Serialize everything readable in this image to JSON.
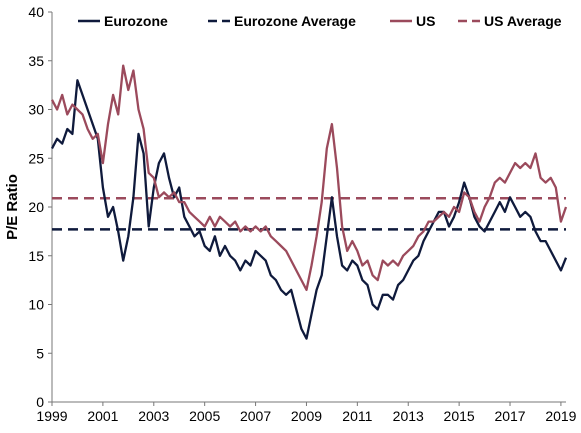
{
  "chart_data": {
    "type": "line",
    "title": "",
    "xlabel": "",
    "ylabel": "P/E Ratio",
    "xlim": [
      1999,
      2019.2
    ],
    "ylim": [
      0,
      40
    ],
    "x_ticks": [
      "1999",
      "2001",
      "2003",
      "2005",
      "2007",
      "2009",
      "2011",
      "2013",
      "2015",
      "2017",
      "2019"
    ],
    "y_ticks": [
      "0",
      "5",
      "10",
      "15",
      "20",
      "25",
      "30",
      "35",
      "40"
    ],
    "grid": false,
    "legend": "top",
    "series": [
      {
        "name": "Eurozone",
        "color": "#0f1a3c",
        "style": "solid",
        "points": [
          [
            1999.0,
            26.0
          ],
          [
            1999.2,
            27.0
          ],
          [
            1999.4,
            26.5
          ],
          [
            1999.6,
            28.0
          ],
          [
            1999.8,
            27.5
          ],
          [
            2000.0,
            33.0
          ],
          [
            2000.2,
            31.5
          ],
          [
            2000.4,
            30.0
          ],
          [
            2000.6,
            28.5
          ],
          [
            2000.8,
            27.0
          ],
          [
            2001.0,
            22.0
          ],
          [
            2001.2,
            19.0
          ],
          [
            2001.4,
            20.0
          ],
          [
            2001.6,
            17.5
          ],
          [
            2001.8,
            14.5
          ],
          [
            2002.0,
            17.0
          ],
          [
            2002.2,
            21.0
          ],
          [
            2002.4,
            27.5
          ],
          [
            2002.6,
            25.5
          ],
          [
            2002.8,
            18.0
          ],
          [
            2003.0,
            22.0
          ],
          [
            2003.2,
            24.5
          ],
          [
            2003.4,
            25.5
          ],
          [
            2003.6,
            23.0
          ],
          [
            2003.8,
            21.0
          ],
          [
            2004.0,
            22.0
          ],
          [
            2004.2,
            19.0
          ],
          [
            2004.4,
            18.0
          ],
          [
            2004.6,
            17.0
          ],
          [
            2004.8,
            17.5
          ],
          [
            2005.0,
            16.0
          ],
          [
            2005.2,
            15.5
          ],
          [
            2005.4,
            17.0
          ],
          [
            2005.6,
            15.0
          ],
          [
            2005.8,
            16.0
          ],
          [
            2006.0,
            15.0
          ],
          [
            2006.2,
            14.5
          ],
          [
            2006.4,
            13.5
          ],
          [
            2006.6,
            14.5
          ],
          [
            2006.8,
            14.0
          ],
          [
            2007.0,
            15.5
          ],
          [
            2007.2,
            15.0
          ],
          [
            2007.4,
            14.5
          ],
          [
            2007.6,
            13.0
          ],
          [
            2007.8,
            12.5
          ],
          [
            2008.0,
            11.5
          ],
          [
            2008.2,
            11.0
          ],
          [
            2008.4,
            11.5
          ],
          [
            2008.6,
            9.5
          ],
          [
            2008.8,
            7.5
          ],
          [
            2009.0,
            6.5
          ],
          [
            2009.2,
            9.0
          ],
          [
            2009.4,
            11.5
          ],
          [
            2009.6,
            13.0
          ],
          [
            2009.8,
            17.0
          ],
          [
            2010.0,
            21.0
          ],
          [
            2010.2,
            17.0
          ],
          [
            2010.4,
            14.0
          ],
          [
            2010.6,
            13.5
          ],
          [
            2010.8,
            14.5
          ],
          [
            2011.0,
            14.0
          ],
          [
            2011.2,
            12.5
          ],
          [
            2011.4,
            12.0
          ],
          [
            2011.6,
            10.0
          ],
          [
            2011.8,
            9.5
          ],
          [
            2012.0,
            11.0
          ],
          [
            2012.2,
            11.0
          ],
          [
            2012.4,
            10.5
          ],
          [
            2012.6,
            12.0
          ],
          [
            2012.8,
            12.5
          ],
          [
            2013.0,
            13.5
          ],
          [
            2013.2,
            14.5
          ],
          [
            2013.4,
            15.0
          ],
          [
            2013.6,
            16.5
          ],
          [
            2013.8,
            17.5
          ],
          [
            2014.0,
            18.5
          ],
          [
            2014.2,
            19.5
          ],
          [
            2014.4,
            19.5
          ],
          [
            2014.6,
            18.0
          ],
          [
            2014.8,
            19.0
          ],
          [
            2015.0,
            20.5
          ],
          [
            2015.2,
            22.5
          ],
          [
            2015.4,
            21.0
          ],
          [
            2015.6,
            19.0
          ],
          [
            2015.8,
            18.0
          ],
          [
            2016.0,
            17.5
          ],
          [
            2016.2,
            18.5
          ],
          [
            2016.4,
            19.5
          ],
          [
            2016.6,
            20.5
          ],
          [
            2016.8,
            19.5
          ],
          [
            2017.0,
            21.0
          ],
          [
            2017.2,
            20.0
          ],
          [
            2017.4,
            19.0
          ],
          [
            2017.6,
            19.5
          ],
          [
            2017.8,
            19.0
          ],
          [
            2018.0,
            17.5
          ],
          [
            2018.2,
            16.5
          ],
          [
            2018.4,
            16.5
          ],
          [
            2018.6,
            15.5
          ],
          [
            2018.8,
            14.5
          ],
          [
            2019.0,
            13.5
          ],
          [
            2019.2,
            14.8
          ]
        ]
      },
      {
        "name": "Eurozone Average",
        "color": "#0f1a3c",
        "style": "dashed",
        "value": 17.7
      },
      {
        "name": "US",
        "color": "#9b4a5c",
        "style": "solid",
        "points": [
          [
            1999.0,
            31.0
          ],
          [
            1999.2,
            30.0
          ],
          [
            1999.4,
            31.5
          ],
          [
            1999.6,
            29.5
          ],
          [
            1999.8,
            30.5
          ],
          [
            2000.0,
            30.0
          ],
          [
            2000.2,
            29.5
          ],
          [
            2000.4,
            28.0
          ],
          [
            2000.6,
            27.0
          ],
          [
            2000.8,
            27.5
          ],
          [
            2001.0,
            24.5
          ],
          [
            2001.2,
            28.5
          ],
          [
            2001.4,
            31.5
          ],
          [
            2001.6,
            29.5
          ],
          [
            2001.8,
            34.5
          ],
          [
            2002.0,
            32.0
          ],
          [
            2002.2,
            34.0
          ],
          [
            2002.4,
            30.0
          ],
          [
            2002.6,
            28.0
          ],
          [
            2002.8,
            23.5
          ],
          [
            2003.0,
            23.0
          ],
          [
            2003.2,
            21.0
          ],
          [
            2003.4,
            21.5
          ],
          [
            2003.6,
            21.0
          ],
          [
            2003.8,
            21.5
          ],
          [
            2004.0,
            20.5
          ],
          [
            2004.2,
            20.5
          ],
          [
            2004.4,
            19.5
          ],
          [
            2004.6,
            19.0
          ],
          [
            2004.8,
            18.5
          ],
          [
            2005.0,
            18.0
          ],
          [
            2005.2,
            19.0
          ],
          [
            2005.4,
            18.0
          ],
          [
            2005.6,
            19.0
          ],
          [
            2005.8,
            18.5
          ],
          [
            2006.0,
            18.0
          ],
          [
            2006.2,
            18.5
          ],
          [
            2006.4,
            17.5
          ],
          [
            2006.6,
            18.0
          ],
          [
            2006.8,
            17.5
          ],
          [
            2007.0,
            18.0
          ],
          [
            2007.2,
            17.5
          ],
          [
            2007.4,
            18.0
          ],
          [
            2007.6,
            17.0
          ],
          [
            2007.8,
            16.5
          ],
          [
            2008.0,
            16.0
          ],
          [
            2008.2,
            15.5
          ],
          [
            2008.4,
            14.5
          ],
          [
            2008.6,
            13.5
          ],
          [
            2008.8,
            12.5
          ],
          [
            2009.0,
            11.5
          ],
          [
            2009.2,
            14.0
          ],
          [
            2009.4,
            17.0
          ],
          [
            2009.6,
            20.5
          ],
          [
            2009.8,
            26.0
          ],
          [
            2010.0,
            28.5
          ],
          [
            2010.2,
            24.0
          ],
          [
            2010.4,
            18.0
          ],
          [
            2010.6,
            15.5
          ],
          [
            2010.8,
            16.5
          ],
          [
            2011.0,
            15.5
          ],
          [
            2011.2,
            14.0
          ],
          [
            2011.4,
            14.5
          ],
          [
            2011.6,
            13.0
          ],
          [
            2011.8,
            12.5
          ],
          [
            2012.0,
            14.5
          ],
          [
            2012.2,
            14.0
          ],
          [
            2012.4,
            14.5
          ],
          [
            2012.6,
            14.0
          ],
          [
            2012.8,
            15.0
          ],
          [
            2013.0,
            15.5
          ],
          [
            2013.2,
            16.0
          ],
          [
            2013.4,
            17.0
          ],
          [
            2013.6,
            17.5
          ],
          [
            2013.8,
            18.5
          ],
          [
            2014.0,
            18.5
          ],
          [
            2014.2,
            19.0
          ],
          [
            2014.4,
            19.5
          ],
          [
            2014.6,
            19.0
          ],
          [
            2014.8,
            20.0
          ],
          [
            2015.0,
            19.5
          ],
          [
            2015.2,
            21.5
          ],
          [
            2015.4,
            21.0
          ],
          [
            2015.6,
            19.5
          ],
          [
            2015.8,
            18.5
          ],
          [
            2016.0,
            20.0
          ],
          [
            2016.2,
            21.0
          ],
          [
            2016.4,
            22.5
          ],
          [
            2016.6,
            23.0
          ],
          [
            2016.8,
            22.5
          ],
          [
            2017.0,
            23.5
          ],
          [
            2017.2,
            24.5
          ],
          [
            2017.4,
            24.0
          ],
          [
            2017.6,
            24.5
          ],
          [
            2017.8,
            24.0
          ],
          [
            2018.0,
            25.5
          ],
          [
            2018.2,
            23.0
          ],
          [
            2018.4,
            22.5
          ],
          [
            2018.6,
            23.0
          ],
          [
            2018.8,
            22.0
          ],
          [
            2019.0,
            18.5
          ],
          [
            2019.2,
            20.0
          ]
        ]
      },
      {
        "name": "US Average",
        "color": "#9b4a5c",
        "style": "dashed",
        "value": 20.9
      }
    ]
  }
}
